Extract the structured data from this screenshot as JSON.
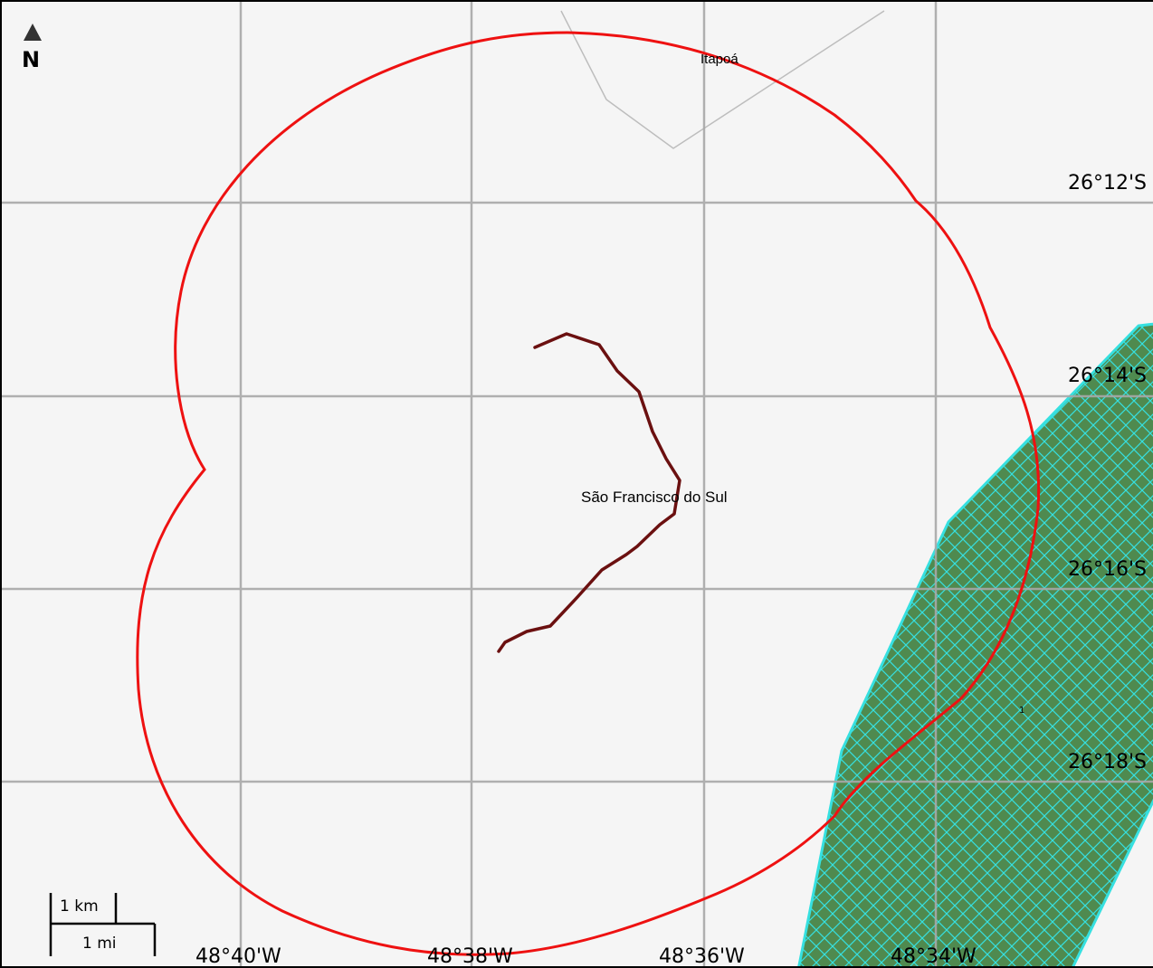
{
  "map": {
    "north_arrow_label": "N",
    "places": {
      "itapoa": "Itapoá",
      "sao_francisco": "São Francisco do Sul",
      "feature_marker": "1"
    },
    "latitude_labels": [
      "26°12'S",
      "26°14'S",
      "26°16'S",
      "26°18'S"
    ],
    "longitude_labels": [
      "48°40'W",
      "48°38'W",
      "48°36'W",
      "48°34'W"
    ],
    "scale_bar": {
      "km_label": "1 km",
      "mi_label": "1 mi"
    },
    "colors": {
      "background": "#f5f5f5",
      "grid": "#a8a8a8",
      "buffer_outline": "#ee1111",
      "track_line": "#6b1010",
      "area_fill": "#4f8a4f",
      "area_hatch": "#36e0e0",
      "boundary": "#bdbdbd"
    }
  }
}
